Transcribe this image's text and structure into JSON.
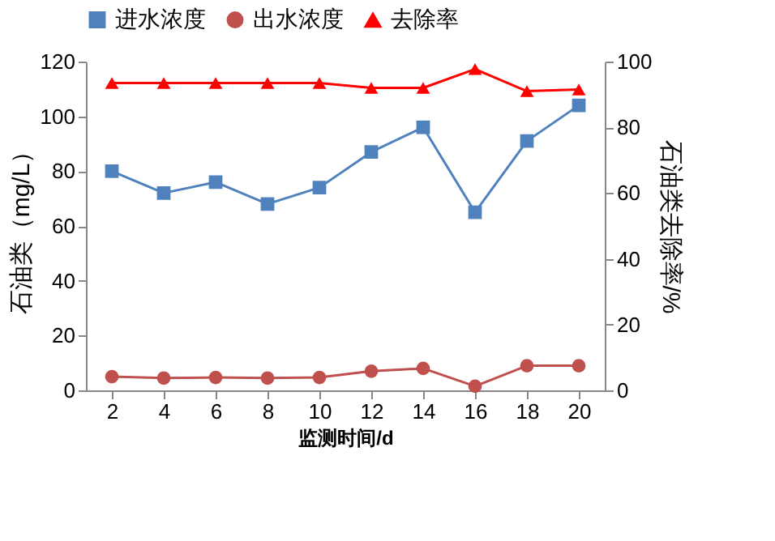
{
  "chart_data": {
    "type": "line",
    "xlabel": "监测时间/d",
    "ylabel": "石油类（mg/L）",
    "y2label": "石油类去除率/%",
    "categories": [
      "2",
      "4",
      "6",
      "8",
      "10",
      "12",
      "14",
      "16",
      "18",
      "20"
    ],
    "series": [
      {
        "name": "进水浓度",
        "color": "#4f81bd",
        "marker": "square",
        "values": [
          80,
          72,
          76,
          68,
          74,
          87,
          96,
          65,
          91,
          104
        ]
      },
      {
        "name": "出水浓度",
        "color": "#c0504d",
        "marker": "circle",
        "values": [
          5,
          4.5,
          4.7,
          4.5,
          4.7,
          7,
          8,
          1.5,
          9,
          9
        ]
      },
      {
        "name": "去除率",
        "color": "#ff0000",
        "marker": "triangle",
        "axis": "y2",
        "values": [
          93.5,
          93.5,
          93.5,
          93.5,
          93.5,
          92,
          92,
          97.7,
          91,
          91.5
        ]
      }
    ],
    "ylim": [
      0,
      120
    ],
    "yticks": [
      0,
      20,
      40,
      60,
      80,
      100,
      120
    ],
    "y2lim": [
      0,
      100
    ],
    "y2ticks": [
      0,
      20,
      40,
      60,
      80,
      100
    ],
    "legend": "top",
    "grid": false
  }
}
